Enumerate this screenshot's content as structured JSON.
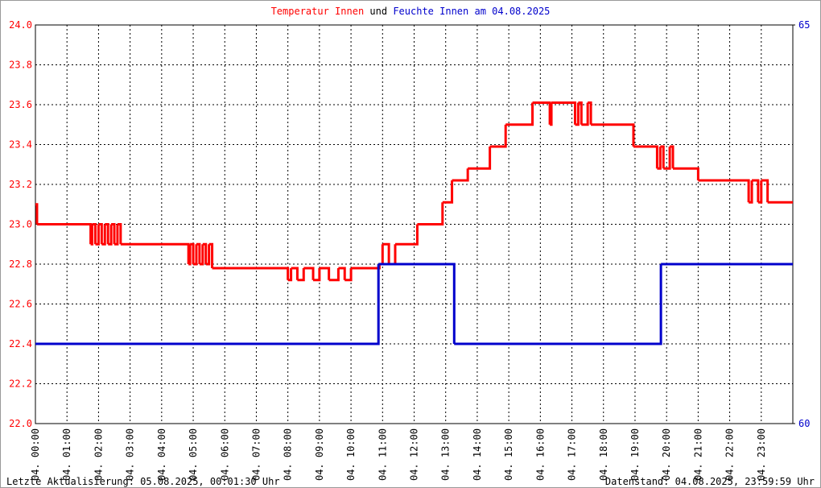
{
  "chart_data": {
    "type": "step-line",
    "title_joiner": "und",
    "title_suffix": "am 04.08.2025",
    "footer_left": "Letzte Aktualisierung: 05.08.2025, 00:01:30 Uhr",
    "footer_right": "Datenstand: 04.08.2025, 23:59:59 Uhr",
    "xlim": [
      0,
      24
    ],
    "xticks": [
      {
        "value": 0,
        "label": "04. 00:00"
      },
      {
        "value": 1,
        "label": "04. 01:00"
      },
      {
        "value": 2,
        "label": "04. 02:00"
      },
      {
        "value": 3,
        "label": "04. 03:00"
      },
      {
        "value": 4,
        "label": "04. 04:00"
      },
      {
        "value": 5,
        "label": "04. 05:00"
      },
      {
        "value": 6,
        "label": "04. 06:00"
      },
      {
        "value": 7,
        "label": "04. 07:00"
      },
      {
        "value": 8,
        "label": "04. 08:00"
      },
      {
        "value": 9,
        "label": "04. 09:00"
      },
      {
        "value": 10,
        "label": "04. 10:00"
      },
      {
        "value": 11,
        "label": "04. 11:00"
      },
      {
        "value": 12,
        "label": "04. 12:00"
      },
      {
        "value": 13,
        "label": "04. 13:00"
      },
      {
        "value": 14,
        "label": "04. 14:00"
      },
      {
        "value": 15,
        "label": "04. 15:00"
      },
      {
        "value": 16,
        "label": "04. 16:00"
      },
      {
        "value": 17,
        "label": "04. 17:00"
      },
      {
        "value": 18,
        "label": "04. 18:00"
      },
      {
        "value": 19,
        "label": "04. 19:00"
      },
      {
        "value": 20,
        "label": "04. 20:00"
      },
      {
        "value": 21,
        "label": "04. 21:00"
      },
      {
        "value": 22,
        "label": "04. 22:00"
      },
      {
        "value": 23,
        "label": "04. 23:00"
      }
    ],
    "ylim": [
      22.0,
      24.0
    ],
    "yticks": [
      {
        "value": 22.0,
        "label": "22.0"
      },
      22.2,
      22.4,
      22.6,
      22.8,
      {
        "value": 23.0,
        "label": "23.0"
      },
      23.2,
      23.4,
      23.6,
      23.8,
      {
        "value": 24.0,
        "label": "24.0"
      }
    ],
    "y2lim": [
      60,
      65
    ],
    "y2ticks": [
      60,
      65
    ],
    "grid": true,
    "series": [
      {
        "name": "Temperatur Innen",
        "color": "#ff0000",
        "x": [
          0,
          0.05,
          1.75,
          1.8,
          1.9,
          2.0,
          2.1,
          2.2,
          2.3,
          2.4,
          2.5,
          2.6,
          2.7,
          4.85,
          4.9,
          5.0,
          5.1,
          5.2,
          5.3,
          5.4,
          5.5,
          5.6,
          8.0,
          8.1,
          8.3,
          8.5,
          8.8,
          9.0,
          9.3,
          9.6,
          9.8,
          10.0,
          10.9,
          11.0,
          11.2,
          11.4,
          12.1,
          12.9,
          13.2,
          13.7,
          14.4,
          14.9,
          15.75,
          16.3,
          16.35,
          17.1,
          17.2,
          17.3,
          17.5,
          17.6,
          18.95,
          19.7,
          19.8,
          19.9,
          20.1,
          20.2,
          21.0,
          22.6,
          22.7,
          22.9,
          23.0,
          23.2,
          24
        ],
        "values": [
          23.1,
          23.0,
          22.9,
          23.0,
          22.9,
          23.0,
          22.9,
          23.0,
          22.9,
          23.0,
          22.9,
          23.0,
          22.9,
          22.8,
          22.9,
          22.8,
          22.9,
          22.8,
          22.9,
          22.8,
          22.9,
          22.78,
          22.72,
          22.78,
          22.72,
          22.78,
          22.72,
          22.78,
          22.72,
          22.78,
          22.72,
          22.78,
          22.8,
          22.9,
          22.8,
          22.9,
          23.0,
          23.11,
          23.22,
          23.28,
          23.39,
          23.5,
          23.61,
          23.5,
          23.61,
          23.5,
          23.61,
          23.5,
          23.61,
          23.5,
          23.39,
          23.28,
          23.39,
          23.28,
          23.39,
          23.28,
          23.22,
          23.11,
          23.22,
          23.11,
          23.22,
          23.11,
          23.11
        ]
      },
      {
        "name": "Feuchte Innen",
        "color": "#0000cc",
        "axis": "y2",
        "x": [
          0,
          10.87,
          13.27,
          19.82,
          24
        ],
        "values": [
          61,
          62,
          61,
          62,
          62
        ]
      }
    ]
  }
}
